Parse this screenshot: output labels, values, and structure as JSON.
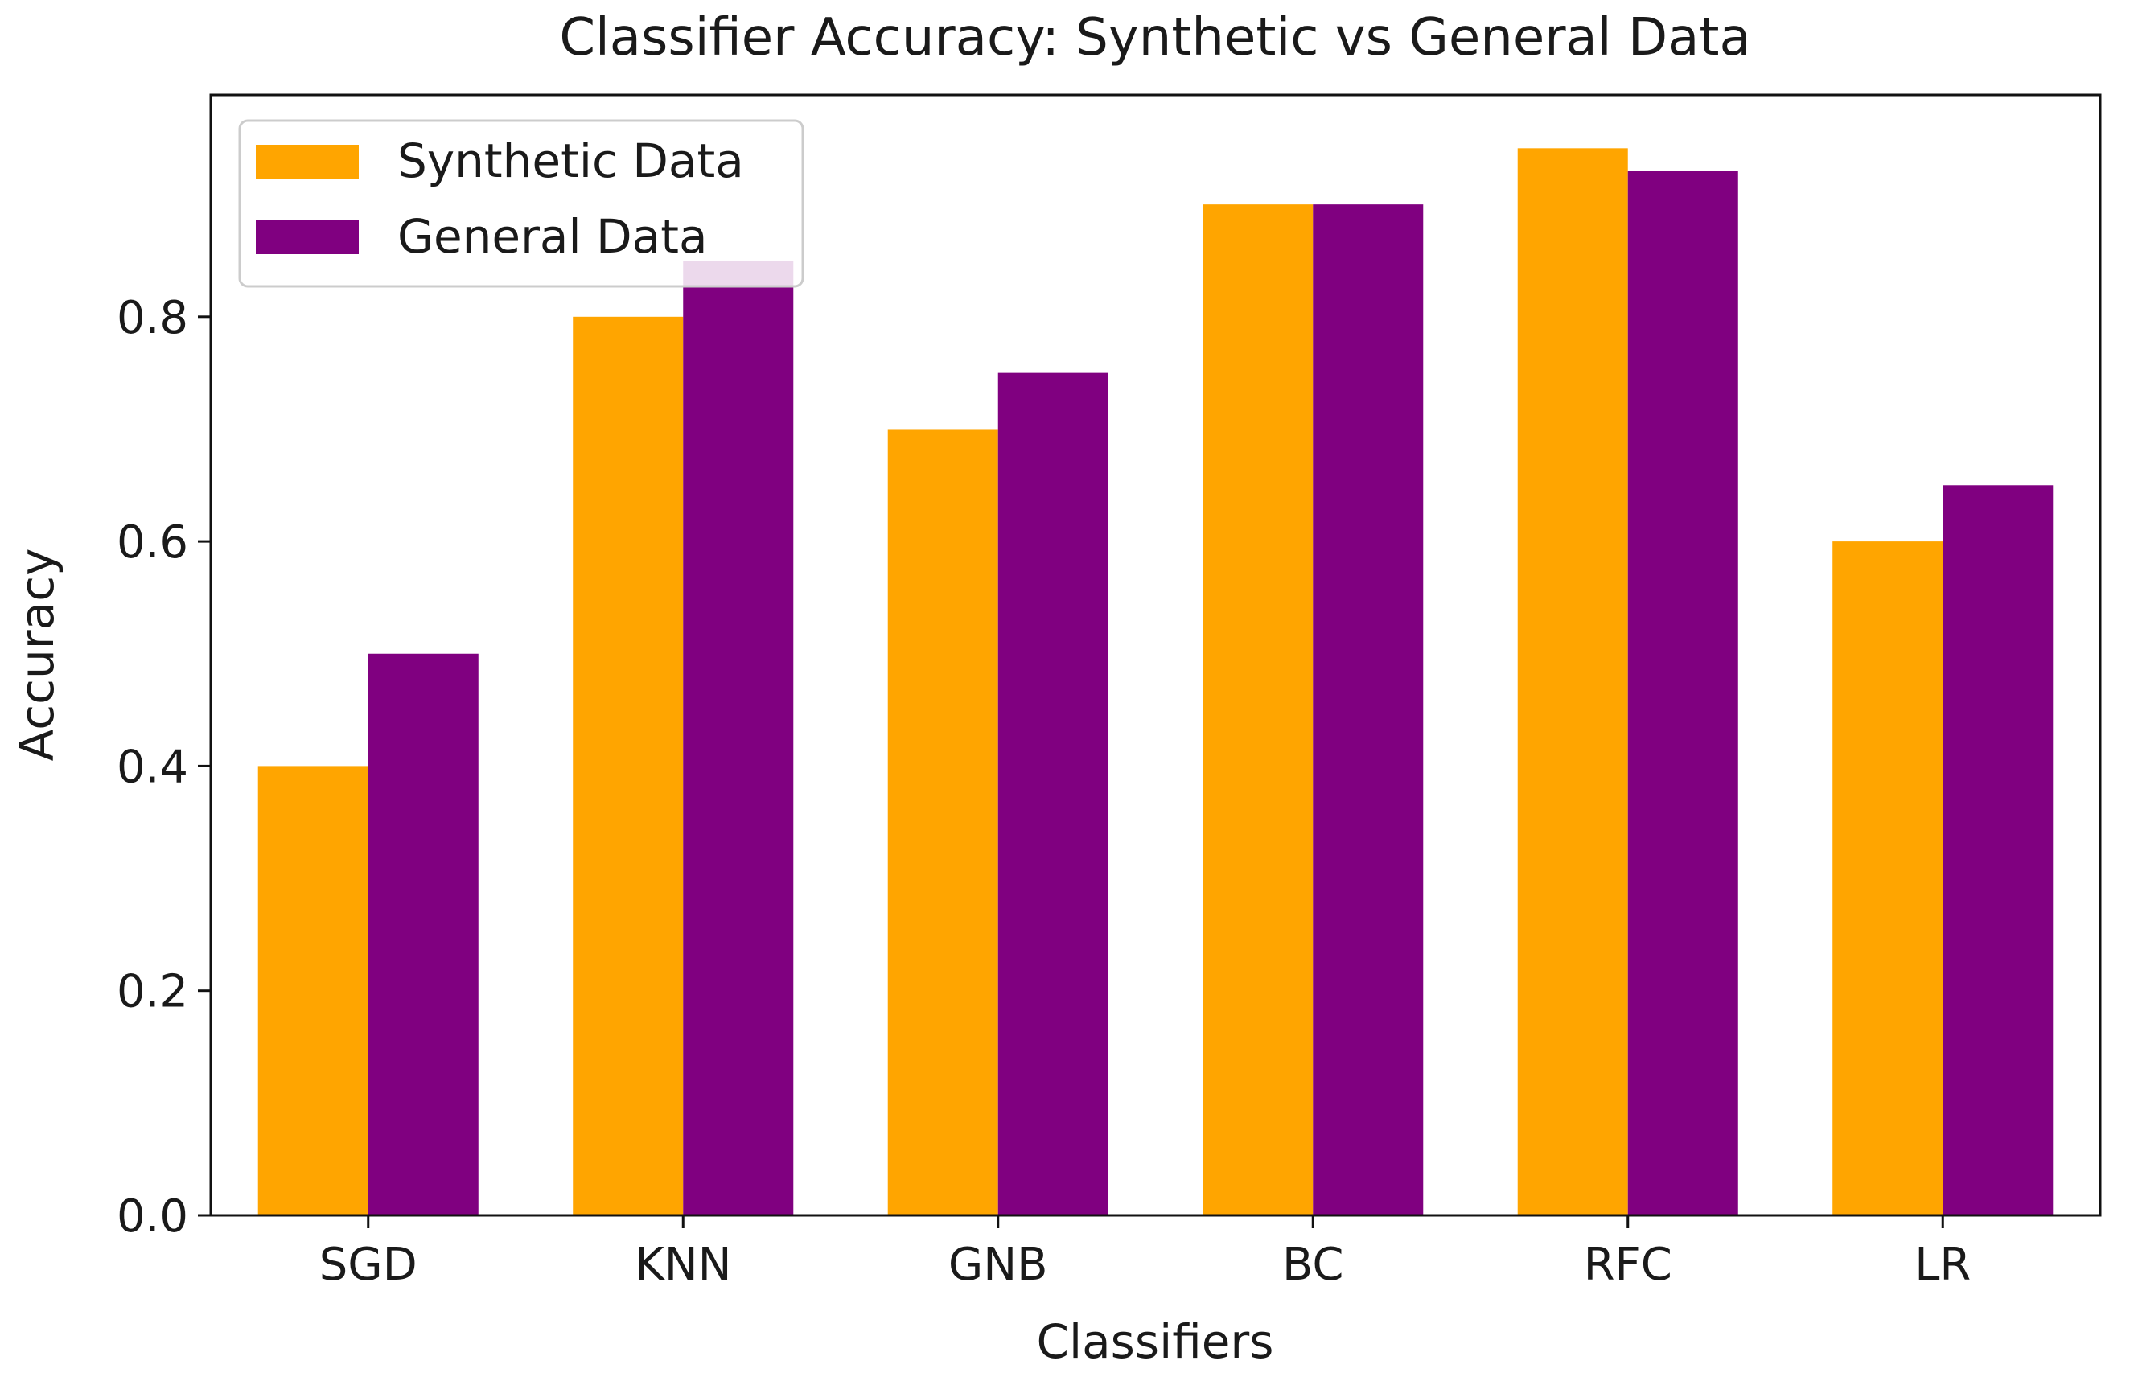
{
  "chart_data": {
    "type": "bar",
    "title": "Classifier Accuracy: Synthetic vs General Data",
    "xlabel": "Classifiers",
    "ylabel": "Accuracy",
    "categories": [
      "SGD",
      "KNN",
      "GNB",
      "BC",
      "RFC",
      "LR"
    ],
    "series": [
      {
        "name": "Synthetic Data",
        "color": "#FFA500",
        "values": [
          0.4,
          0.8,
          0.7,
          0.9,
          0.95,
          0.6
        ]
      },
      {
        "name": "General Data",
        "color": "#800080",
        "values": [
          0.5,
          0.85,
          0.75,
          0.9,
          0.93,
          0.65
        ]
      }
    ],
    "ylim": [
      0,
      0.9975
    ],
    "yticks": [
      0.0,
      0.2,
      0.4,
      0.6,
      0.8
    ],
    "ytick_labels": [
      "0.0",
      "0.2",
      "0.4",
      "0.6",
      "0.8"
    ],
    "legend_position": "upper left",
    "grid": false
  }
}
